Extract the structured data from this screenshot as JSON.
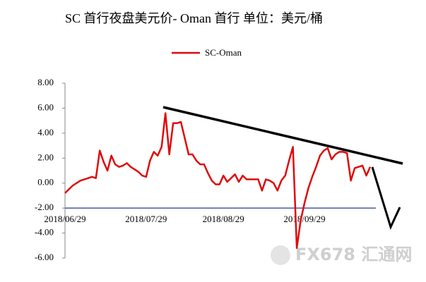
{
  "chart_data": {
    "type": "line",
    "title": "SC 首行夜盘美元价- Oman 首行  单位：美元/桶",
    "categories": [
      "2018/06/29",
      null,
      null,
      null,
      null,
      null,
      null,
      null,
      null,
      null,
      null,
      null,
      null,
      null,
      null,
      null,
      null,
      null,
      null,
      null,
      null,
      "2018/07/29",
      null,
      null,
      null,
      null,
      null,
      null,
      null,
      null,
      null,
      null,
      null,
      null,
      null,
      null,
      null,
      null,
      null,
      null,
      null,
      "2018/08/29",
      null,
      null,
      null,
      null,
      null,
      null,
      null,
      null,
      null,
      null,
      null,
      null,
      null,
      null,
      null,
      null,
      null,
      null,
      null,
      null,
      "2018/09/29",
      null,
      null,
      null,
      null,
      null,
      null,
      null,
      null,
      null,
      null,
      null,
      null,
      null,
      null,
      null,
      null,
      null
    ],
    "series": [
      {
        "name": "SC-Oman",
        "color": "#e00a0a",
        "values": [
          -0.8,
          -0.5,
          -0.2,
          0.0,
          0.2,
          0.3,
          0.4,
          0.5,
          0.4,
          2.6,
          1.7,
          1.0,
          2.2,
          1.5,
          1.3,
          1.4,
          1.6,
          1.3,
          1.1,
          0.9,
          0.6,
          0.5,
          1.8,
          2.5,
          2.2,
          2.9,
          5.6,
          2.3,
          4.8,
          4.8,
          4.9,
          3.6,
          2.3,
          2.3,
          1.8,
          1.5,
          1.5,
          0.8,
          0.2,
          -0.1,
          -0.1,
          0.6,
          0.1,
          0.4,
          0.7,
          0.1,
          0.6,
          0.3,
          0.3,
          0.3,
          0.3,
          -0.6,
          0.3,
          0.2,
          0.0,
          -0.6,
          0.2,
          0.6,
          1.8,
          2.9,
          -5.2,
          -3.0,
          -1.6,
          -0.4,
          0.5,
          1.3,
          2.2,
          2.6,
          2.8,
          1.9,
          2.3,
          2.5,
          2.5,
          2.4,
          0.2,
          1.2,
          1.3,
          1.4,
          0.6,
          1.3
        ]
      }
    ],
    "ylim": [
      -6,
      8
    ],
    "yticks": [
      {
        "value": -6,
        "label": "-6.00"
      },
      {
        "value": -4,
        "label": "-4.00"
      },
      {
        "value": -2,
        "label": "-2.00"
      },
      {
        "value": 0,
        "label": "0.00"
      },
      {
        "value": 2,
        "label": "2.00"
      },
      {
        "value": 4,
        "label": "4.00"
      },
      {
        "value": 6,
        "label": "6.00"
      },
      {
        "value": 8,
        "label": "8.00"
      }
    ],
    "xaxis_crosses": -2,
    "legend": "top",
    "watermark": "FX678 汇通网"
  }
}
